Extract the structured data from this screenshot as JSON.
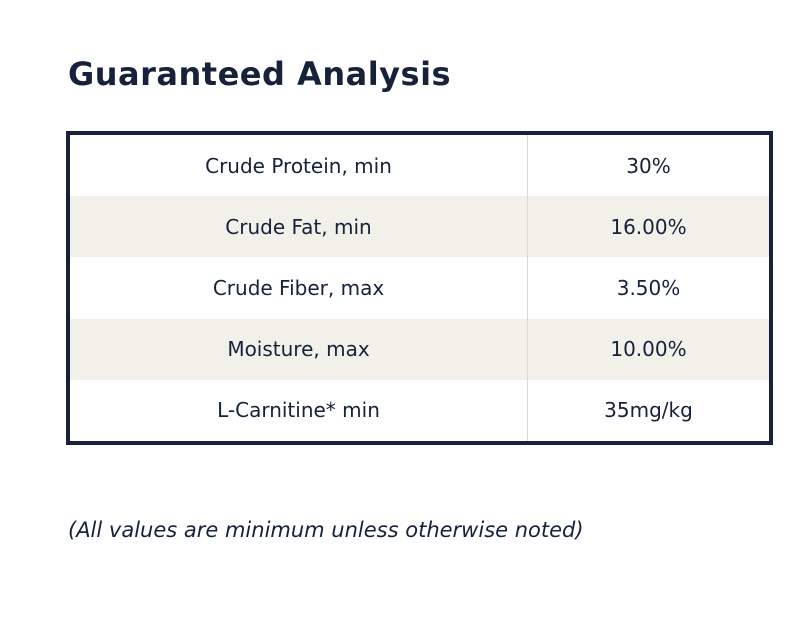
{
  "title": "Guaranteed Analysis",
  "rows": [
    {
      "label": "Crude Protein, min",
      "value": "30%"
    },
    {
      "label": "Crude Fat, min",
      "value": "16.00%"
    },
    {
      "label": "Crude Fiber, max",
      "value": "3.50%"
    },
    {
      "label": "Moisture, max",
      "value": "10.00%"
    },
    {
      "label": "L-Carnitine* min",
      "value": "35mg/kg"
    }
  ],
  "note": "(All values are minimum unless otherwise noted)",
  "colors": {
    "text": "#16213a",
    "border": "#16213a",
    "row_shade": "#f1f0e9",
    "background": "#ffffff"
  }
}
